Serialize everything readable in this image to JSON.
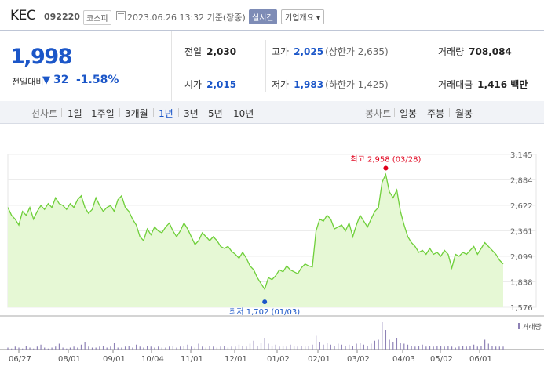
{
  "header": {
    "name": "KEC",
    "code": "092220",
    "market": "코스피",
    "date": "2023.06.26 13:32 기준(장중)",
    "realtime": "실시간",
    "overview": "기업개요 ▾"
  },
  "quote": {
    "price": "1,998",
    "change_label": "전일대비",
    "change_arrow": "▼",
    "change": "32",
    "change_pct": "-1.58%",
    "prev_label": "전일",
    "prev": "2,030",
    "high_label": "고가",
    "high": "2,025",
    "upper_limit": "(상한가 2,635)",
    "volume_label": "거래량",
    "volume": "708,084",
    "open_label": "시가",
    "open": "2,015",
    "low_label": "저가",
    "low": "1,983",
    "lower_limit": "(하한가 1,425)",
    "value_label": "거래대금",
    "value": "1,416 백만"
  },
  "tabs": {
    "line_label": "선차트",
    "periods": [
      "1일",
      "1주일",
      "3개월",
      "1년",
      "3년",
      "5년",
      "10년"
    ],
    "selected_period": "1년",
    "candle_label": "봉차트",
    "candles": [
      "일봉",
      "주봉",
      "월봉"
    ]
  },
  "colors": {
    "accent": "#1b56c8",
    "up": "#e0001b",
    "line": "#6fcf3a",
    "fill": "#e6f8d5",
    "volume": "#8e82b6"
  },
  "chart_data": {
    "type": "area",
    "y_ticks": [
      "3,145",
      "2,884",
      "2,622",
      "2,361",
      "2,099",
      "1,838",
      "1,576"
    ],
    "ylim": [
      1576,
      3145
    ],
    "x_ticks": [
      "06/27",
      "08/01",
      "09/01",
      "10/04",
      "11/01",
      "12/01",
      "01/02",
      "02/01",
      "03/02",
      "04/03",
      "05/02",
      "06/01"
    ],
    "max_label": "최고 2,958 (03/28)",
    "min_label": "최저 1,702 (01/03)",
    "volume_legend": "거래량",
    "series": [
      {
        "values": [
          2600,
          2520,
          2480,
          2420,
          2560,
          2520,
          2600,
          2480,
          2560,
          2620,
          2580,
          2640,
          2600,
          2700,
          2640,
          2620,
          2580,
          2640,
          2600,
          2680,
          2720,
          2600,
          2540,
          2580,
          2700,
          2620,
          2560,
          2600,
          2620,
          2560,
          2680,
          2720,
          2600,
          2560,
          2480,
          2420,
          2300,
          2260,
          2380,
          2320,
          2400,
          2360,
          2340,
          2400,
          2440,
          2360,
          2300,
          2360,
          2440,
          2380,
          2300,
          2220,
          2260,
          2340,
          2300,
          2260,
          2300,
          2260,
          2200,
          2180,
          2200,
          2150,
          2120,
          2080,
          2140,
          2080,
          2000,
          1960,
          1880,
          1820,
          1760,
          1880,
          1860,
          1900,
          1960,
          1940,
          2000,
          1960,
          1940,
          1920,
          1980,
          2020,
          2000,
          1990,
          2360,
          2480,
          2460,
          2520,
          2480,
          2380,
          2400,
          2420,
          2360,
          2440,
          2300,
          2420,
          2520,
          2460,
          2400,
          2480,
          2560,
          2600,
          2860,
          2940,
          2760,
          2700,
          2780,
          2560,
          2420,
          2300,
          2240,
          2200,
          2140,
          2160,
          2120,
          2180,
          2120,
          2140,
          2100,
          2160,
          2120,
          1980,
          2120,
          2100,
          2140,
          2120,
          2160,
          2200,
          2120,
          2180,
          2240,
          2200,
          2160,
          2120,
          2060,
          2020
        ]
      }
    ],
    "volume": [
      2,
      1,
      3,
      2,
      1,
      4,
      2,
      1,
      3,
      5,
      2,
      1,
      2,
      3,
      6,
      2,
      1,
      2,
      3,
      2,
      5,
      8,
      3,
      2,
      2,
      3,
      4,
      2,
      3,
      7,
      2,
      2,
      3,
      4,
      2,
      5,
      3,
      2,
      4,
      3,
      2,
      3,
      2,
      2,
      3,
      4,
      2,
      3,
      4,
      5,
      3,
      2,
      6,
      3,
      2,
      4,
      3,
      2,
      3,
      4,
      2,
      3,
      3,
      5,
      4,
      3,
      6,
      9,
      4,
      7,
      12,
      6,
      4,
      5,
      3,
      4,
      3,
      5,
      4,
      3,
      4,
      3,
      4,
      5,
      14,
      8,
      5,
      7,
      5,
      4,
      6,
      5,
      4,
      5,
      4,
      6,
      7,
      5,
      4,
      6,
      9,
      10,
      28,
      20,
      10,
      8,
      12,
      7,
      6,
      5,
      4,
      3,
      4,
      5,
      3,
      4,
      3,
      4,
      4,
      3,
      4,
      3,
      2,
      3,
      4,
      3,
      4,
      5,
      3,
      4,
      10,
      6,
      4,
      3,
      3,
      3
    ]
  }
}
